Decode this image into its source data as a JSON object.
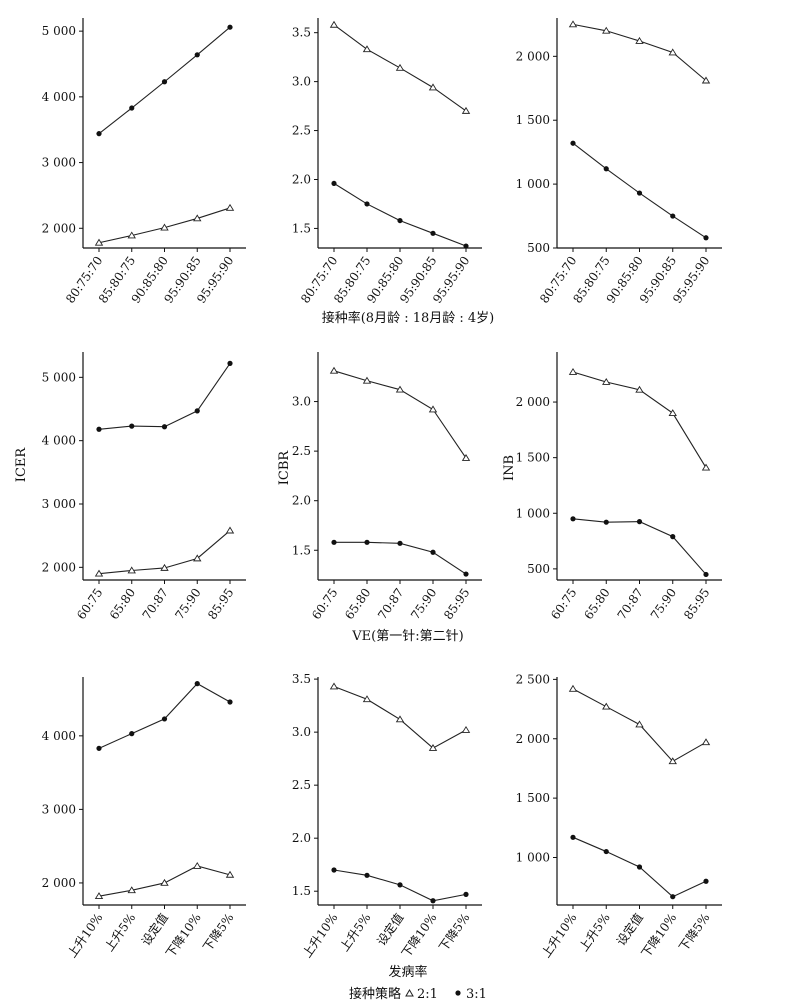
{
  "figure": {
    "row_labels": [
      "接种率(8月龄 : 18月龄 : 4岁)",
      "VE(第一针:第二针)",
      "发病率"
    ],
    "column_ylabels": [
      "ICER",
      "ICBR",
      "INB"
    ],
    "legend": {
      "title": "接种策略",
      "items": [
        {
          "marker": "triangle",
          "label": "2:1"
        },
        {
          "marker": "dot",
          "label": "3:1"
        }
      ]
    }
  },
  "chart_data": [
    {
      "type": "line",
      "row": 0,
      "col": 0,
      "ylabel": "",
      "categories": [
        "80:75:70",
        "85:80:75",
        "90:85:80",
        "95:90:85",
        "95:95:90"
      ],
      "ylim": [
        1700,
        5200
      ],
      "yticks": [
        2000,
        3000,
        4000,
        5000
      ],
      "yticklabels": [
        "2 000",
        "3 000",
        "4 000",
        "5 000"
      ],
      "series": [
        {
          "name": "2:1",
          "marker": "triangle",
          "values": [
            1780,
            1890,
            2010,
            2150,
            2310
          ]
        },
        {
          "name": "3:1",
          "marker": "dot",
          "values": [
            3440,
            3830,
            4230,
            4640,
            5060
          ]
        }
      ]
    },
    {
      "type": "line",
      "row": 0,
      "col": 1,
      "ylabel": "",
      "categories": [
        "80:75:70",
        "85:80:75",
        "90:85:80",
        "95:90:85",
        "95:95:90"
      ],
      "ylim": [
        1.3,
        3.65
      ],
      "yticks": [
        1.5,
        2.0,
        2.5,
        3.0,
        3.5
      ],
      "yticklabels": [
        "1.5",
        "2.0",
        "2.5",
        "3.0",
        "3.5"
      ],
      "series": [
        {
          "name": "2:1",
          "marker": "triangle",
          "values": [
            3.58,
            3.33,
            3.14,
            2.94,
            2.7
          ]
        },
        {
          "name": "3:1",
          "marker": "dot",
          "values": [
            1.96,
            1.75,
            1.58,
            1.45,
            1.32
          ]
        }
      ]
    },
    {
      "type": "line",
      "row": 0,
      "col": 2,
      "ylabel": "",
      "categories": [
        "80:75:70",
        "85:80:75",
        "90:85:80",
        "95:90:85",
        "95:95:90"
      ],
      "ylim": [
        500,
        2300
      ],
      "yticks": [
        500,
        1000,
        1500,
        2000
      ],
      "yticklabels": [
        "500",
        "1 000",
        "1 500",
        "2 000"
      ],
      "series": [
        {
          "name": "2:1",
          "marker": "triangle",
          "values": [
            2250,
            2200,
            2120,
            2030,
            1810
          ]
        },
        {
          "name": "3:1",
          "marker": "dot",
          "values": [
            1320,
            1120,
            930,
            750,
            580
          ]
        }
      ]
    },
    {
      "type": "line",
      "row": 1,
      "col": 0,
      "ylabel": "ICER",
      "categories": [
        "60:75",
        "65:80",
        "70:87",
        "75:90",
        "85:95"
      ],
      "ylim": [
        1800,
        5400
      ],
      "yticks": [
        2000,
        3000,
        4000,
        5000
      ],
      "yticklabels": [
        "2 000",
        "3 000",
        "4 000",
        "5 000"
      ],
      "series": [
        {
          "name": "2:1",
          "marker": "triangle",
          "values": [
            1900,
            1950,
            1990,
            2140,
            2580
          ]
        },
        {
          "name": "3:1",
          "marker": "dot",
          "values": [
            4180,
            4230,
            4220,
            4470,
            5220
          ]
        }
      ]
    },
    {
      "type": "line",
      "row": 1,
      "col": 1,
      "ylabel": "ICBR",
      "categories": [
        "60:75",
        "65:80",
        "70:87",
        "75:90",
        "85:95"
      ],
      "ylim": [
        1.2,
        3.5
      ],
      "yticks": [
        1.5,
        2.0,
        2.5,
        3.0
      ],
      "yticklabels": [
        "1.5",
        "2.0",
        "2.5",
        "3.0"
      ],
      "series": [
        {
          "name": "2:1",
          "marker": "triangle",
          "values": [
            3.31,
            3.21,
            3.12,
            2.92,
            2.43
          ]
        },
        {
          "name": "3:1",
          "marker": "dot",
          "values": [
            1.58,
            1.58,
            1.57,
            1.48,
            1.26
          ]
        }
      ]
    },
    {
      "type": "line",
      "row": 1,
      "col": 2,
      "ylabel": "INB",
      "categories": [
        "60:75",
        "65:80",
        "70:87",
        "75:90",
        "85:95"
      ],
      "ylim": [
        400,
        2450
      ],
      "yticks": [
        500,
        1000,
        1500,
        2000
      ],
      "yticklabels": [
        "500",
        "1 000",
        "1 500",
        "2 000"
      ],
      "series": [
        {
          "name": "2:1",
          "marker": "triangle",
          "values": [
            2270,
            2180,
            2110,
            1900,
            1410
          ]
        },
        {
          "name": "3:1",
          "marker": "dot",
          "values": [
            950,
            920,
            925,
            790,
            450
          ]
        }
      ]
    },
    {
      "type": "line",
      "row": 2,
      "col": 0,
      "ylabel": "",
      "categories": [
        "上升10%",
        "上升5%",
        "设定值",
        "下降10%",
        "下降5%"
      ],
      "ylim": [
        1700,
        4800
      ],
      "yticks": [
        2000,
        3000,
        4000
      ],
      "yticklabels": [
        "2 000",
        "3 000",
        "4 000"
      ],
      "series": [
        {
          "name": "2:1",
          "marker": "triangle",
          "values": [
            1820,
            1900,
            2000,
            2230,
            2110
          ]
        },
        {
          "name": "3:1",
          "marker": "dot",
          "values": [
            3830,
            4030,
            4230,
            4710,
            4460
          ]
        }
      ]
    },
    {
      "type": "line",
      "row": 2,
      "col": 1,
      "ylabel": "",
      "categories": [
        "上升10%",
        "上升5%",
        "设定值",
        "下降10%",
        "下降5%"
      ],
      "ylim": [
        1.37,
        3.52
      ],
      "yticks": [
        1.5,
        2.0,
        2.5,
        3.0,
        3.5
      ],
      "yticklabels": [
        "1.5",
        "2.0",
        "2.5",
        "3.0",
        "3.5"
      ],
      "series": [
        {
          "name": "2:1",
          "marker": "triangle",
          "values": [
            3.43,
            3.31,
            3.12,
            2.85,
            3.02
          ]
        },
        {
          "name": "3:1",
          "marker": "dot",
          "values": [
            1.7,
            1.65,
            1.56,
            1.41,
            1.47
          ]
        }
      ]
    },
    {
      "type": "line",
      "row": 2,
      "col": 2,
      "ylabel": "",
      "categories": [
        "上升10%",
        "上升5%",
        "设定值",
        "下降10%",
        "下降5%"
      ],
      "ylim": [
        600,
        2520
      ],
      "yticks": [
        1000,
        1500,
        2000,
        2500
      ],
      "yticklabels": [
        "1 000",
        "1 500",
        "2 000",
        "2 500"
      ],
      "series": [
        {
          "name": "2:1",
          "marker": "triangle",
          "values": [
            2420,
            2270,
            2120,
            1810,
            1970
          ]
        },
        {
          "name": "3:1",
          "marker": "dot",
          "values": [
            1170,
            1050,
            920,
            670,
            800
          ]
        }
      ]
    }
  ]
}
